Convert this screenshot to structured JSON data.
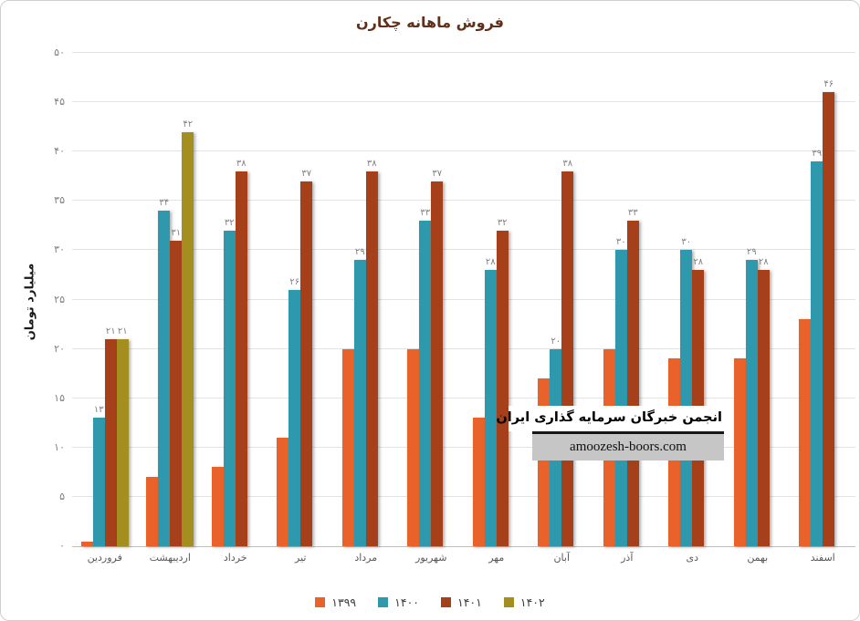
{
  "watermark": {
    "line1": "انجمن خبرگان سرمایه گذاری ایران",
    "line2": "amoozesh-boors.com"
  },
  "chart_data": {
    "type": "bar",
    "title": "فروش ماهانه چکارن",
    "xlabel": "",
    "ylabel": "میلیارد تومان",
    "ylim": [
      0,
      50
    ],
    "ytick_step": 5,
    "grid": true,
    "legend_position": "bottom",
    "categories": [
      "فروردین",
      "اردیبهشت",
      "خرداد",
      "تیر",
      "مرداد",
      "شهریور",
      "مهر",
      "آبان",
      "آذر",
      "دی",
      "بهمن",
      "اسفند"
    ],
    "series": [
      {
        "name": "۱۳۹۹",
        "color": "#e8622a",
        "show_labels": false,
        "values": [
          0.5,
          7,
          8,
          11,
          20,
          20,
          13,
          17,
          20,
          19,
          19,
          23
        ]
      },
      {
        "name": "۱۴۰۰",
        "color": "#2e99ad",
        "show_labels": true,
        "values": [
          13,
          34,
          32,
          26,
          29,
          33,
          28,
          20,
          30,
          30,
          29,
          39
        ]
      },
      {
        "name": "۱۴۰۱",
        "color": "#a5401a",
        "show_labels": true,
        "values": [
          21,
          31,
          38,
          37,
          38,
          37,
          32,
          38,
          33,
          28,
          28,
          46
        ]
      },
      {
        "name": "۱۴۰۲",
        "color": "#a38e1f",
        "show_labels": true,
        "values": [
          21,
          42,
          null,
          null,
          null,
          null,
          null,
          null,
          null,
          null,
          null,
          null
        ]
      }
    ]
  }
}
